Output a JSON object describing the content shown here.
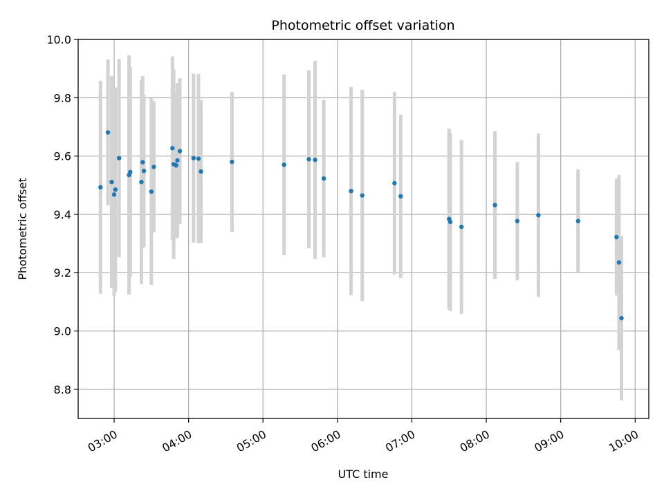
{
  "chart_data": {
    "type": "scatter",
    "title": "Photometric offset variation",
    "xlabel": "UTC time",
    "ylabel": "Photometric offset",
    "x_axis_kind": "time",
    "xlim": [
      "02:31",
      "10:11"
    ],
    "ylim": [
      8.7,
      10.0
    ],
    "x_ticks": [
      "03:00",
      "04:00",
      "05:00",
      "06:00",
      "07:00",
      "08:00",
      "09:00",
      "10:00"
    ],
    "y_ticks": [
      8.8,
      9.0,
      9.2,
      9.4,
      9.6,
      9.8,
      10.0
    ],
    "grid": true,
    "legend": "none",
    "marker_color": "#1f77b4",
    "errorbar_color": "#d3d3d3",
    "points": [
      {
        "t": "02:49",
        "y": 9.493,
        "err": 0.365
      },
      {
        "t": "02:55",
        "y": 9.681,
        "err": 0.25
      },
      {
        "t": "02:58",
        "y": 9.511,
        "err": 0.363
      },
      {
        "t": "03:00",
        "y": 9.468,
        "err": 0.348
      },
      {
        "t": "03:01",
        "y": 9.485,
        "err": 0.35
      },
      {
        "t": "03:04",
        "y": 9.593,
        "err": 0.34
      },
      {
        "t": "03:12",
        "y": 9.535,
        "err": 0.41
      },
      {
        "t": "03:13",
        "y": 9.545,
        "err": 0.36
      },
      {
        "t": "03:22",
        "y": 9.511,
        "err": 0.35
      },
      {
        "t": "03:23",
        "y": 9.579,
        "err": 0.295
      },
      {
        "t": "03:24",
        "y": 9.549,
        "err": 0.26
      },
      {
        "t": "03:30",
        "y": 9.478,
        "err": 0.32
      },
      {
        "t": "03:32",
        "y": 9.563,
        "err": 0.225
      },
      {
        "t": "03:47",
        "y": 9.627,
        "err": 0.315
      },
      {
        "t": "03:48",
        "y": 9.572,
        "err": 0.325
      },
      {
        "t": "03:50",
        "y": 9.568,
        "err": 0.25
      },
      {
        "t": "03:51",
        "y": 9.585,
        "err": 0.265
      },
      {
        "t": "03:53",
        "y": 9.617,
        "err": 0.25
      },
      {
        "t": "04:04",
        "y": 9.593,
        "err": 0.29
      },
      {
        "t": "04:08",
        "y": 9.591,
        "err": 0.29
      },
      {
        "t": "04:10",
        "y": 9.547,
        "err": 0.245
      },
      {
        "t": "04:35",
        "y": 9.58,
        "err": 0.24
      },
      {
        "t": "05:17",
        "y": 9.57,
        "err": 0.31
      },
      {
        "t": "05:37",
        "y": 9.589,
        "err": 0.305
      },
      {
        "t": "05:42",
        "y": 9.587,
        "err": 0.34
      },
      {
        "t": "05:49",
        "y": 9.523,
        "err": 0.27
      },
      {
        "t": "06:11",
        "y": 9.48,
        "err": 0.357
      },
      {
        "t": "06:20",
        "y": 9.465,
        "err": 0.362
      },
      {
        "t": "06:46",
        "y": 9.507,
        "err": 0.313
      },
      {
        "t": "06:51",
        "y": 9.462,
        "err": 0.28
      },
      {
        "t": "07:30",
        "y": 9.384,
        "err": 0.31
      },
      {
        "t": "07:31",
        "y": 9.374,
        "err": 0.305
      },
      {
        "t": "07:40",
        "y": 9.357,
        "err": 0.298
      },
      {
        "t": "08:07",
        "y": 9.432,
        "err": 0.253
      },
      {
        "t": "08:25",
        "y": 9.377,
        "err": 0.203
      },
      {
        "t": "08:42",
        "y": 9.397,
        "err": 0.28
      },
      {
        "t": "09:14",
        "y": 9.377,
        "err": 0.177
      },
      {
        "t": "09:45",
        "y": 9.322,
        "err": 0.2
      },
      {
        "t": "09:47",
        "y": 9.235,
        "err": 0.3
      },
      {
        "t": "09:49",
        "y": 9.044,
        "err": 0.282
      }
    ]
  }
}
